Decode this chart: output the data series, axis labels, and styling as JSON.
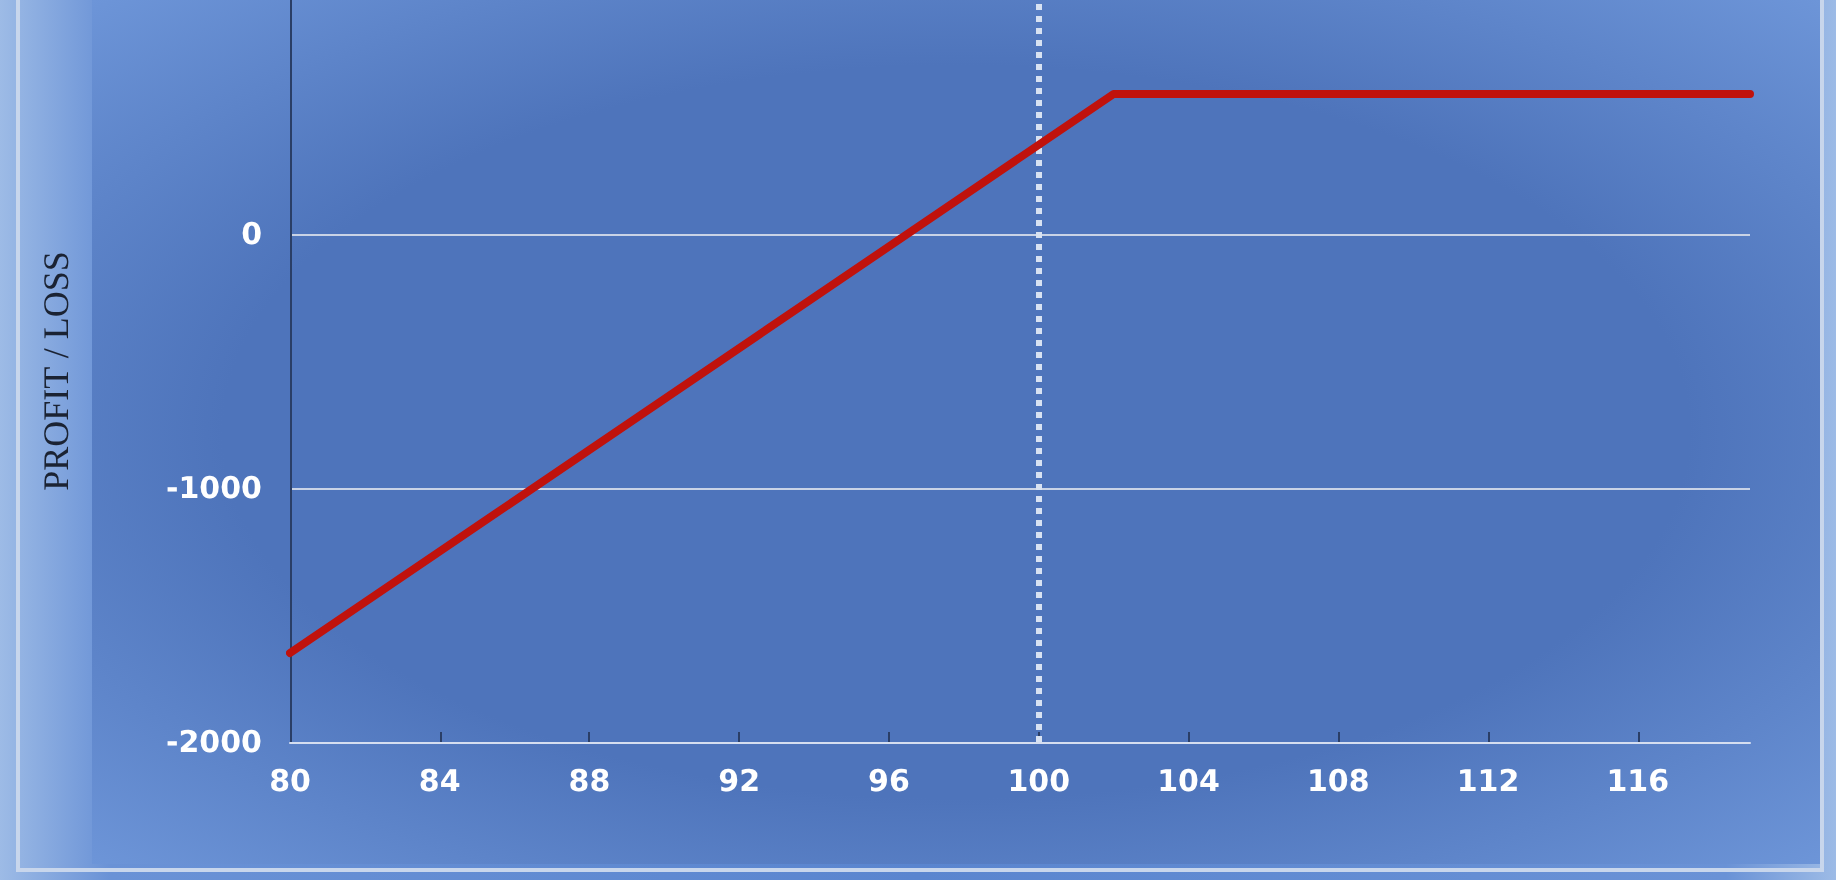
{
  "chart_data": {
    "type": "line",
    "ylabel": "PROFIT / LOSS",
    "x": [
      80,
      102,
      119
    ],
    "series": [
      {
        "color": "#c0120c",
        "values": [
          -1650,
          550,
          550
        ]
      }
    ],
    "xlim": [
      80,
      119
    ],
    "xticks": [
      80,
      84,
      88,
      92,
      96,
      100,
      104,
      108,
      112,
      116
    ],
    "ylim": [
      -2000,
      920
    ],
    "yticks": [
      -2000,
      -1000,
      0
    ],
    "ref_lines": [
      {
        "axis": "x",
        "value": 100,
        "color": "#d8e2f2",
        "line_style": "dotted"
      }
    ],
    "grid": "y",
    "marker": "none",
    "line_style": "solid"
  }
}
